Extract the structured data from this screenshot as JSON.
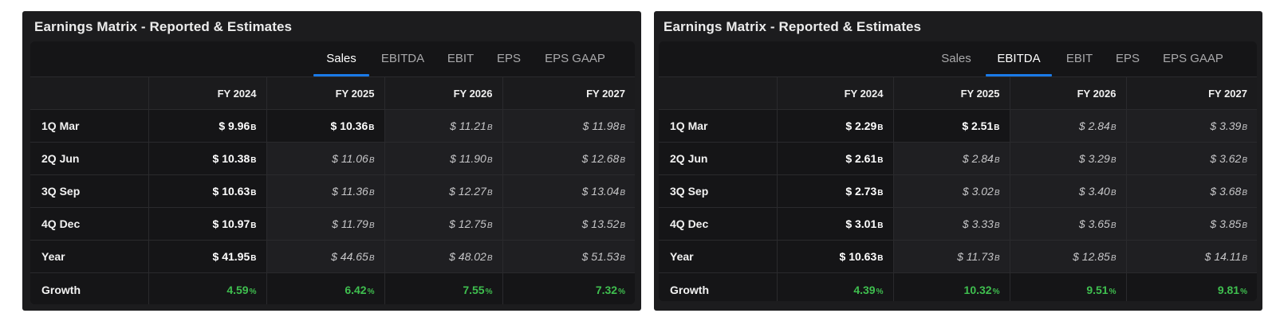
{
  "colors": {
    "accent": "#1a7ae8",
    "growth": "#3fbf4f",
    "panel_bg": "#1c1c1e"
  },
  "panels": [
    {
      "title": "Earnings Matrix - Reported & Estimates",
      "tabs": [
        "Sales",
        "EBITDA",
        "EBIT",
        "EPS",
        "EPS GAAP"
      ],
      "active_tab": "Sales",
      "columns": [
        "FY 2024",
        "FY 2025",
        "FY 2026",
        "FY 2027"
      ],
      "unit_suffix": "B",
      "growth_suffix": "%",
      "rows": [
        {
          "label": "1Q Mar",
          "cells": [
            {
              "value": "$ 9.96",
              "kind": "actual"
            },
            {
              "value": "$ 10.36",
              "kind": "actual"
            },
            {
              "value": "$ 11.21",
              "kind": "est"
            },
            {
              "value": "$ 11.98",
              "kind": "est"
            }
          ]
        },
        {
          "label": "2Q Jun",
          "cells": [
            {
              "value": "$ 10.38",
              "kind": "actual"
            },
            {
              "value": "$ 11.06",
              "kind": "est"
            },
            {
              "value": "$ 11.90",
              "kind": "est"
            },
            {
              "value": "$ 12.68",
              "kind": "est"
            }
          ]
        },
        {
          "label": "3Q Sep",
          "cells": [
            {
              "value": "$ 10.63",
              "kind": "actual"
            },
            {
              "value": "$ 11.36",
              "kind": "est"
            },
            {
              "value": "$ 12.27",
              "kind": "est"
            },
            {
              "value": "$ 13.04",
              "kind": "est"
            }
          ]
        },
        {
          "label": "4Q Dec",
          "cells": [
            {
              "value": "$ 10.97",
              "kind": "actual"
            },
            {
              "value": "$ 11.79",
              "kind": "est"
            },
            {
              "value": "$ 12.75",
              "kind": "est"
            },
            {
              "value": "$ 13.52",
              "kind": "est"
            }
          ]
        },
        {
          "label": "Year",
          "cells": [
            {
              "value": "$ 41.95",
              "kind": "actual"
            },
            {
              "value": "$ 44.65",
              "kind": "est"
            },
            {
              "value": "$ 48.02",
              "kind": "est"
            },
            {
              "value": "$ 51.53",
              "kind": "est"
            }
          ]
        }
      ],
      "growth": {
        "label": "Growth",
        "values": [
          "4.59",
          "6.42",
          "7.55",
          "7.32"
        ]
      }
    },
    {
      "title": "Earnings Matrix - Reported & Estimates",
      "tabs": [
        "Sales",
        "EBITDA",
        "EBIT",
        "EPS",
        "EPS GAAP"
      ],
      "active_tab": "EBITDA",
      "columns": [
        "FY 2024",
        "FY 2025",
        "FY 2026",
        "FY 2027"
      ],
      "unit_suffix": "B",
      "growth_suffix": "%",
      "rows": [
        {
          "label": "1Q Mar",
          "cells": [
            {
              "value": "$ 2.29",
              "kind": "actual"
            },
            {
              "value": "$ 2.51",
              "kind": "actual"
            },
            {
              "value": "$ 2.84",
              "kind": "est"
            },
            {
              "value": "$ 3.39",
              "kind": "est"
            }
          ]
        },
        {
          "label": "2Q Jun",
          "cells": [
            {
              "value": "$ 2.61",
              "kind": "actual"
            },
            {
              "value": "$ 2.84",
              "kind": "est"
            },
            {
              "value": "$ 3.29",
              "kind": "est"
            },
            {
              "value": "$ 3.62",
              "kind": "est"
            }
          ]
        },
        {
          "label": "3Q Sep",
          "cells": [
            {
              "value": "$ 2.73",
              "kind": "actual"
            },
            {
              "value": "$ 3.02",
              "kind": "est"
            },
            {
              "value": "$ 3.40",
              "kind": "est"
            },
            {
              "value": "$ 3.68",
              "kind": "est"
            }
          ]
        },
        {
          "label": "4Q Dec",
          "cells": [
            {
              "value": "$ 3.01",
              "kind": "actual"
            },
            {
              "value": "$ 3.33",
              "kind": "est"
            },
            {
              "value": "$ 3.65",
              "kind": "est"
            },
            {
              "value": "$ 3.85",
              "kind": "est"
            }
          ]
        },
        {
          "label": "Year",
          "cells": [
            {
              "value": "$ 10.63",
              "kind": "actual"
            },
            {
              "value": "$ 11.73",
              "kind": "est"
            },
            {
              "value": "$ 12.85",
              "kind": "est"
            },
            {
              "value": "$ 14.11",
              "kind": "est"
            }
          ]
        }
      ],
      "growth": {
        "label": "Growth",
        "values": [
          "4.39",
          "10.32",
          "9.51",
          "9.81"
        ]
      }
    }
  ]
}
